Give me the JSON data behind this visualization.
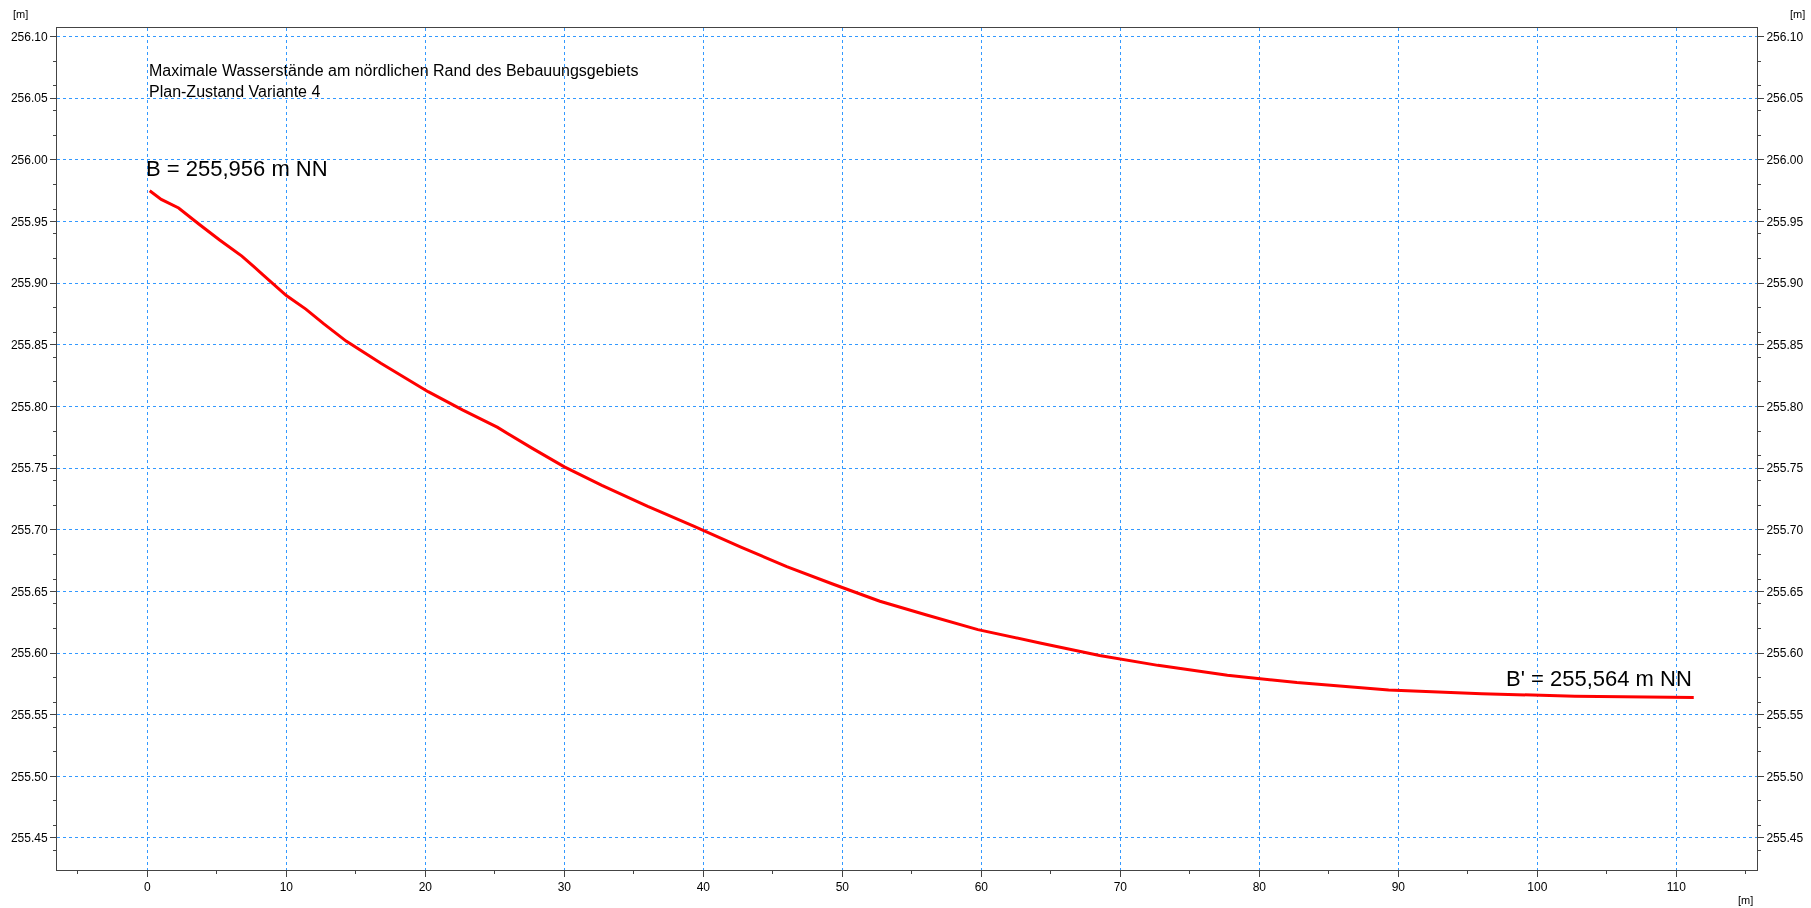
{
  "chart_data": {
    "type": "line",
    "title": "Maximale Wasserstände am nördlichen Rand des Bebauungsgebiets",
    "subtitle": "Plan-Zustand Variante 4",
    "xlabel": "[m]",
    "ylabel": "[m]",
    "y2label": "[m]",
    "annotations": [
      {
        "text": "B = 255,956 m NN",
        "x": 0.17,
        "y": 255.975
      },
      {
        "text": "B' = 255,564 m NN",
        "x": 111.25,
        "y": 255.564
      }
    ],
    "series": [
      {
        "color": "#ff0000",
        "x": [
          0.17,
          1,
          2.25,
          3.7,
          5.2,
          6.8,
          8.3,
          10,
          11.4,
          12.7,
          14.3,
          16.8,
          20.2,
          22.7,
          25.2,
          27.7,
          30,
          32.7,
          36,
          39.3,
          42.7,
          46,
          49.3,
          52.7,
          56,
          59.75,
          64.3,
          68.5,
          72.7,
          77.7,
          82.7,
          89.3,
          96,
          102.7,
          111.25
        ],
        "values": [
          255.975,
          255.968,
          255.961,
          255.948,
          255.935,
          255.922,
          255.907,
          255.89,
          255.879,
          255.867,
          255.853,
          255.835,
          255.812,
          255.797,
          255.783,
          255.766,
          255.751,
          255.736,
          255.719,
          255.703,
          255.686,
          255.67,
          255.656,
          255.642,
          255.631,
          255.619,
          255.608,
          255.598,
          255.59,
          255.582,
          255.576,
          255.57,
          255.567,
          255.565,
          255.564
        ]
      }
    ],
    "xlim": [
      -6.5,
      115.8
    ],
    "xticks": [
      0,
      10,
      20,
      30,
      40,
      50,
      60,
      70,
      80,
      90,
      100,
      110
    ],
    "ylim": [
      255.424,
      256.107
    ],
    "yticks": [
      255.45,
      {
        "value": 255.5,
        "label": "255.50"
      },
      255.55,
      {
        "value": 255.6,
        "label": "255.60"
      },
      255.65,
      {
        "value": 255.7,
        "label": "255.70"
      },
      255.75,
      {
        "value": 255.8,
        "label": "255.80"
      },
      255.85,
      {
        "value": 255.9,
        "label": "255.90"
      },
      255.95,
      {
        "value": 256.0,
        "label": "256.00"
      },
      256.05,
      {
        "value": 256.1,
        "label": "256.10"
      }
    ],
    "y2lim": [
      255.424,
      256.107
    ],
    "y2ticks": [
      255.45,
      {
        "value": 255.5,
        "label": "255.50"
      },
      255.55,
      {
        "value": 255.6,
        "label": "255.60"
      },
      255.65,
      {
        "value": 255.7,
        "label": "255.70"
      },
      255.75,
      {
        "value": 255.8,
        "label": "255.80"
      },
      255.85,
      {
        "value": 255.9,
        "label": "255.90"
      },
      255.95,
      {
        "value": 256.0,
        "label": "256.00"
      },
      256.05,
      {
        "value": 256.1,
        "label": "256.10"
      }
    ],
    "grid": true,
    "marker": "none",
    "line_style": "solid"
  }
}
